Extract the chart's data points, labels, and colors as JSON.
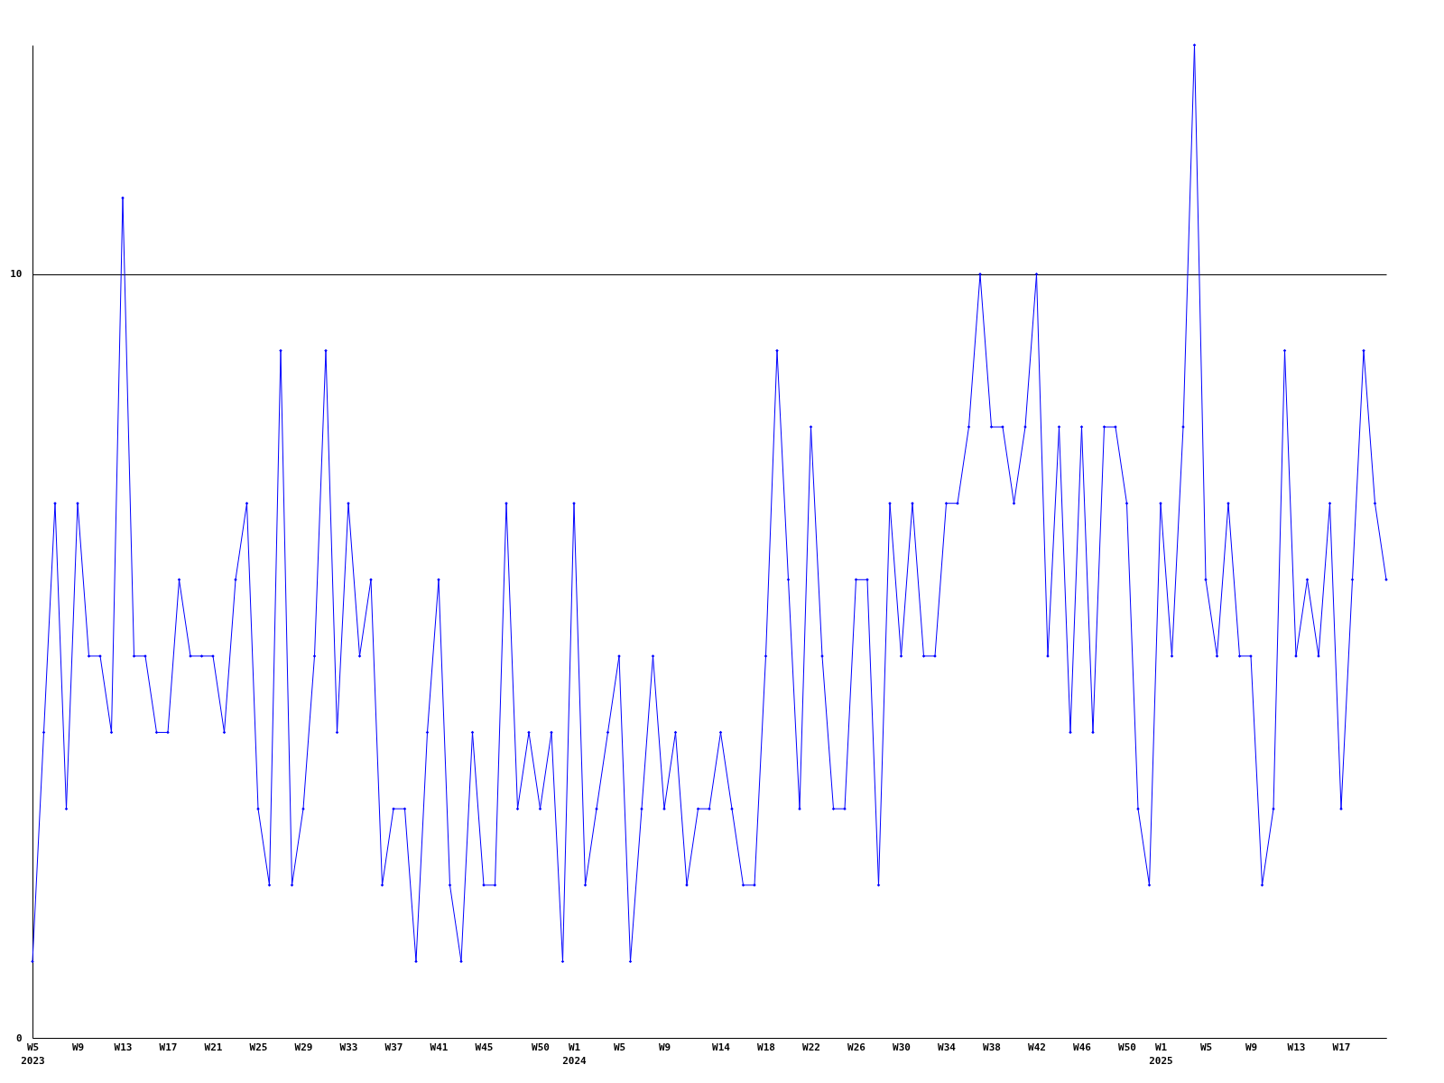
{
  "chart_data": {
    "type": "line",
    "categories": [
      "W5\n2023",
      null,
      null,
      null,
      "W9",
      null,
      null,
      null,
      "W13",
      null,
      null,
      null,
      "W17",
      null,
      null,
      null,
      "W21",
      null,
      null,
      null,
      "W25",
      null,
      null,
      null,
      "W29",
      null,
      null,
      null,
      "W33",
      null,
      null,
      null,
      "W37",
      null,
      null,
      null,
      "W41",
      null,
      null,
      null,
      "W45",
      null,
      null,
      null,
      null,
      "W50",
      null,
      null,
      "W1\n2024",
      null,
      null,
      null,
      "W5",
      null,
      null,
      null,
      "W9",
      null,
      null,
      null,
      null,
      "W14",
      null,
      null,
      null,
      "W18",
      null,
      null,
      null,
      "W22",
      null,
      null,
      null,
      "W26",
      null,
      null,
      null,
      "W30",
      null,
      null,
      null,
      "W34",
      null,
      null,
      null,
      "W38",
      null,
      null,
      null,
      "W42",
      null,
      null,
      null,
      "W46",
      null,
      null,
      null,
      "W50",
      null,
      null,
      "W1\n2025",
      null,
      null,
      null,
      "W5",
      null,
      null,
      null,
      "W9",
      null,
      null,
      null,
      "W13",
      null,
      null,
      null,
      "W17",
      null,
      null,
      null,
      null
    ],
    "series": [
      {
        "color": "#0000ff",
        "values": [
          1,
          4,
          7,
          3,
          7,
          5,
          5,
          4,
          11,
          5,
          5,
          4,
          4,
          6,
          5,
          5,
          5,
          4,
          6,
          7,
          3,
          2,
          9,
          2,
          3,
          5,
          9,
          4,
          7,
          5,
          6,
          2,
          3,
          3,
          1,
          4,
          6,
          2,
          1,
          4,
          2,
          2,
          7,
          3,
          4,
          3,
          4,
          1,
          7,
          2,
          3,
          4,
          5,
          1,
          3,
          5,
          3,
          4,
          2,
          3,
          3,
          4,
          3,
          2,
          2,
          5,
          9,
          6,
          3,
          8,
          5,
          3,
          3,
          6,
          6,
          2,
          7,
          5,
          7,
          5,
          5,
          7,
          7,
          8,
          10,
          8,
          8,
          7,
          8,
          10,
          5,
          8,
          4,
          8,
          4,
          8,
          8,
          7,
          3,
          2,
          7,
          5,
          8,
          13,
          6,
          5,
          7,
          5,
          5,
          2,
          3,
          9,
          5,
          6,
          5,
          7,
          3,
          6,
          9,
          7,
          6
        ]
      }
    ],
    "ylim": [
      0,
      13
    ],
    "yticks": [
      0,
      10
    ],
    "grid": "y",
    "marker": "diamond",
    "line_style": "solid"
  }
}
